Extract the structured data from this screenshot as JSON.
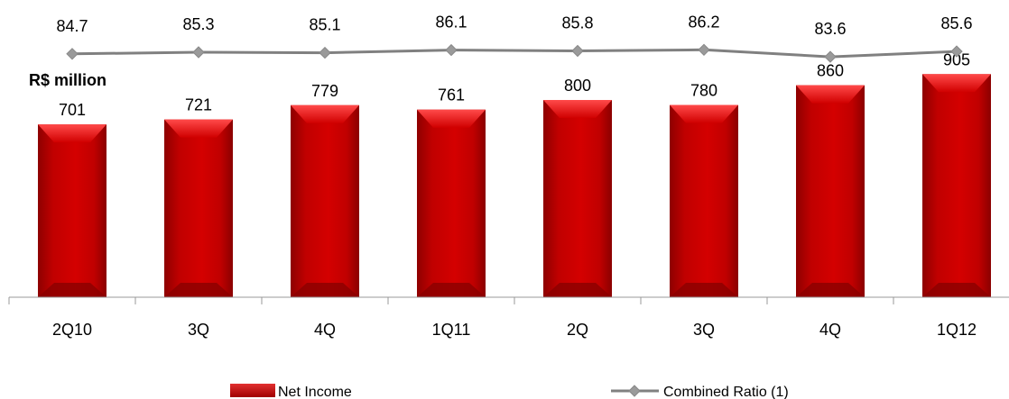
{
  "chart_data": {
    "type": "bar",
    "unit_label": "R$ million",
    "categories": [
      "2Q10",
      "3Q",
      "4Q",
      "1Q11",
      "2Q",
      "3Q",
      "4Q",
      "1Q12"
    ],
    "series": [
      {
        "name": "Net Income",
        "type": "bar",
        "color": "#c00000",
        "values": [
          701,
          721,
          779,
          761,
          800,
          780,
          860,
          905
        ]
      },
      {
        "name": "Combined Ratio (1)",
        "type": "line",
        "color": "#808080",
        "marker": "diamond",
        "values": [
          84.7,
          85.3,
          85.1,
          86.1,
          85.8,
          86.2,
          83.6,
          85.6
        ]
      }
    ],
    "legend_position": "bottom",
    "grid": false
  }
}
